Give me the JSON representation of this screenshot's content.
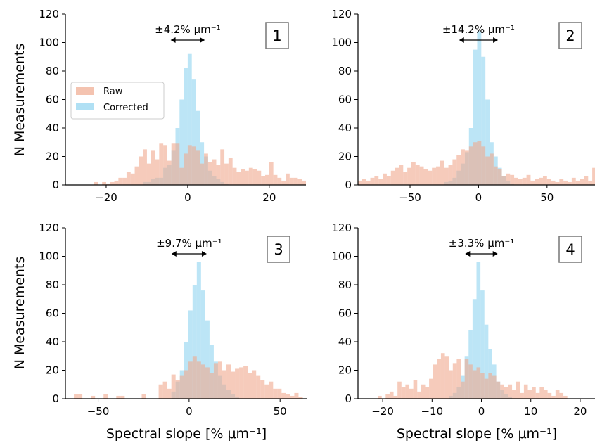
{
  "colors": {
    "raw": "#f0a98e",
    "corrected": "#8fd3f0",
    "axis": "#000000"
  },
  "legend": {
    "raw": "Raw",
    "corrected": "Corrected",
    "placement": "left"
  },
  "ylabel": "N Measurements",
  "xlabel": "Spectral slope [% μm⁻¹]",
  "chart_data": [
    {
      "type": "histogram",
      "panel_label": "1",
      "annotation": "±4.2% μm⁻¹",
      "arrow_halfwidth": 4.2,
      "xlim": [
        -30,
        29
      ],
      "ylim": [
        0,
        120
      ],
      "xticks": [
        -20,
        0,
        20
      ],
      "yticks": [
        0,
        20,
        40,
        60,
        80,
        100,
        120
      ],
      "bin_start": -30,
      "bin_width": 1,
      "raw_counts": [
        0,
        0,
        0,
        0,
        0,
        0,
        0,
        2,
        0,
        2,
        1,
        2,
        3,
        5,
        5,
        9,
        8,
        13,
        20,
        25,
        15,
        24,
        18,
        29,
        28,
        17,
        29,
        29,
        12,
        22,
        28,
        27,
        24,
        15,
        22,
        16,
        18,
        14,
        25,
        15,
        19,
        12,
        9,
        11,
        10,
        12,
        11,
        10,
        6,
        7,
        16,
        7,
        5,
        3,
        8,
        5,
        5,
        4,
        3
      ],
      "corrected_counts": [
        0,
        0,
        0,
        0,
        0,
        0,
        0,
        0,
        0,
        0,
        0,
        0,
        0,
        0,
        0,
        0,
        0,
        0,
        0,
        2,
        2,
        4,
        5,
        5,
        12,
        14,
        24,
        40,
        60,
        82,
        92,
        74,
        52,
        30,
        20,
        10,
        6,
        4,
        2,
        1,
        0,
        0,
        0,
        0,
        0,
        0,
        0,
        0,
        0,
        0,
        0,
        0,
        0,
        0,
        0,
        0,
        0,
        0,
        0
      ],
      "legend_visible": true
    },
    {
      "type": "histogram",
      "panel_label": "2",
      "annotation": "±14.2% μm⁻¹",
      "arrow_halfwidth": 14.2,
      "xlim": [
        -88,
        85
      ],
      "ylim": [
        0,
        120
      ],
      "xticks": [
        -50,
        0,
        50
      ],
      "yticks": [
        0,
        20,
        40,
        60,
        80,
        100,
        120
      ],
      "bin_start": -88,
      "bin_width": 3,
      "raw_counts": [
        3,
        4,
        3,
        5,
        6,
        4,
        8,
        6,
        10,
        12,
        14,
        9,
        12,
        16,
        14,
        13,
        11,
        10,
        12,
        13,
        17,
        12,
        14,
        18,
        21,
        25,
        24,
        27,
        30,
        31,
        27,
        20,
        22,
        13,
        11,
        6,
        8,
        7,
        5,
        4,
        5,
        7,
        3,
        4,
        5,
        6,
        4,
        3,
        2,
        4,
        3,
        2,
        5,
        3,
        4,
        6,
        3,
        12
      ],
      "corrected_counts": [
        0,
        0,
        0,
        0,
        0,
        0,
        0,
        0,
        0,
        0,
        0,
        0,
        0,
        0,
        0,
        0,
        0,
        0,
        0,
        0,
        0,
        2,
        3,
        5,
        10,
        15,
        23,
        40,
        95,
        108,
        90,
        60,
        30,
        20,
        12,
        6,
        3,
        1,
        0,
        0,
        0,
        0,
        0,
        0,
        0,
        0,
        0,
        0,
        0,
        0,
        0,
        0,
        0,
        0,
        0,
        0,
        0,
        0
      ],
      "legend_visible": false
    },
    {
      "type": "histogram",
      "panel_label": "3",
      "annotation": "±9.7% μm⁻¹",
      "arrow_halfwidth": 9.7,
      "xlim": [
        -68,
        65
      ],
      "ylim": [
        0,
        120
      ],
      "xticks": [
        -50,
        0,
        50
      ],
      "yticks": [
        0,
        20,
        40,
        60,
        80,
        100,
        120
      ],
      "bin_start": -68,
      "bin_width": 2.33,
      "raw_counts": [
        0,
        0,
        3,
        3,
        0,
        0,
        2,
        0,
        0,
        3,
        0,
        0,
        2,
        2,
        0,
        0,
        0,
        0,
        3,
        0,
        0,
        0,
        10,
        12,
        7,
        17,
        13,
        16,
        20,
        26,
        30,
        26,
        24,
        22,
        18,
        25,
        26,
        20,
        24,
        19,
        21,
        22,
        23,
        18,
        20,
        16,
        13,
        10,
        12,
        7,
        7,
        4,
        3,
        2,
        4,
        1,
        0
      ],
      "corrected_counts": [
        0,
        0,
        0,
        0,
        0,
        0,
        0,
        0,
        0,
        0,
        0,
        0,
        0,
        0,
        0,
        0,
        0,
        0,
        0,
        0,
        0,
        0,
        0,
        0,
        0,
        5,
        12,
        20,
        40,
        62,
        80,
        96,
        76,
        55,
        38,
        26,
        16,
        10,
        6,
        3,
        1,
        0,
        0,
        0,
        0,
        0,
        0,
        0,
        0,
        0,
        0,
        0,
        0,
        0,
        0,
        0,
        0
      ],
      "legend_visible": false
    },
    {
      "type": "histogram",
      "panel_label": "4",
      "annotation": "±3.3% μm⁻¹",
      "arrow_halfwidth": 3.3,
      "xlim": [
        -25,
        23
      ],
      "ylim": [
        0,
        120
      ],
      "xticks": [
        -20,
        -10,
        0,
        10,
        20
      ],
      "yticks": [
        0,
        20,
        40,
        60,
        80,
        100,
        120
      ],
      "bin_start": -25,
      "bin_width": 0.8,
      "raw_counts": [
        0,
        0,
        0,
        0,
        0,
        2,
        0,
        3,
        5,
        2,
        12,
        8,
        10,
        7,
        13,
        5,
        10,
        8,
        14,
        24,
        28,
        32,
        30,
        20,
        25,
        28,
        12,
        28,
        24,
        20,
        22,
        18,
        14,
        18,
        16,
        12,
        10,
        8,
        10,
        6,
        12,
        4,
        10,
        6,
        8,
        4,
        8,
        6,
        4,
        2,
        6,
        4,
        2,
        0,
        0,
        0,
        0,
        0,
        0,
        0
      ],
      "corrected_counts": [
        0,
        0,
        0,
        0,
        0,
        0,
        0,
        0,
        0,
        0,
        0,
        0,
        0,
        0,
        0,
        0,
        0,
        0,
        0,
        0,
        0,
        0,
        0,
        2,
        4,
        8,
        16,
        30,
        48,
        70,
        96,
        76,
        52,
        35,
        24,
        12,
        6,
        3,
        1,
        0,
        0,
        0,
        0,
        0,
        0,
        0,
        0,
        0,
        0,
        0,
        0,
        0,
        0,
        0,
        0,
        0,
        0,
        0,
        0,
        0
      ],
      "legend_visible": false
    }
  ]
}
